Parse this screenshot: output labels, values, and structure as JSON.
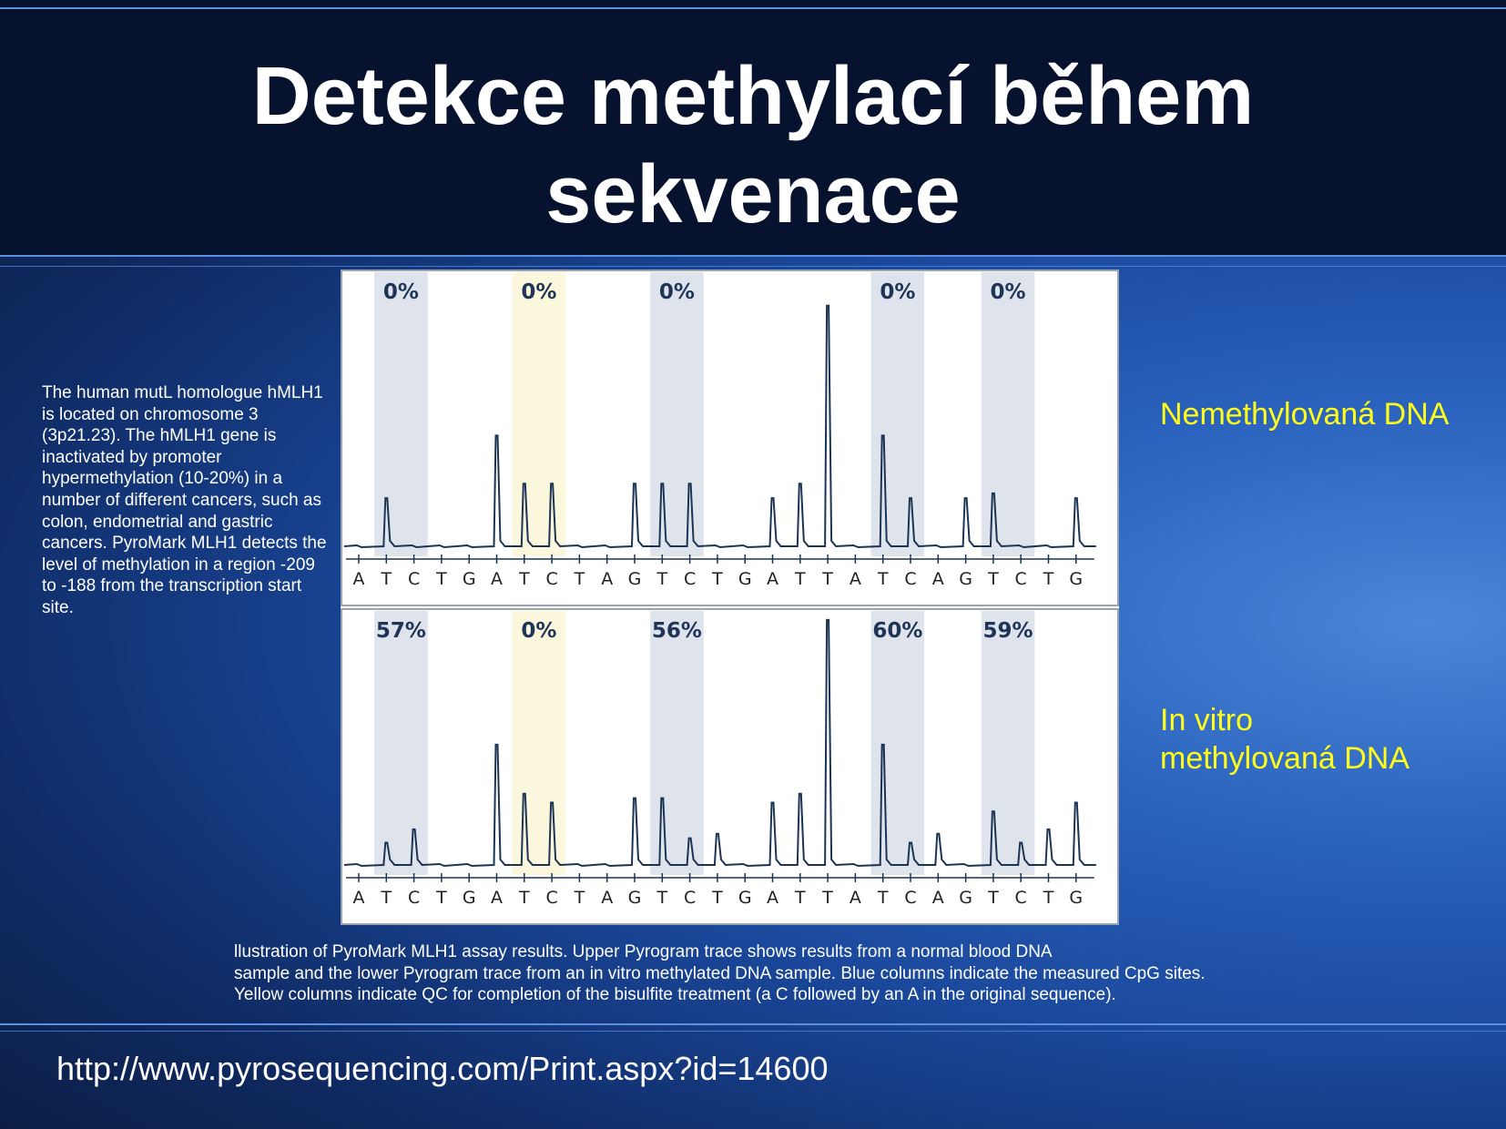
{
  "slide": {
    "title_line1": "Detekce methylací během",
    "title_line2": "sekvenace",
    "description": "The human mutL homologue hMLH1 is located on chromosome 3 (3p21.23). The hMLH1 gene is inactivated by promoter hypermethylation (10-20%) in a number of different cancers, such as colon, endometrial and gastric cancers. PyroMark MLH1 detects the level of methylation in a region -209 to -188 from the transcription start site.",
    "label_unmethylated": "Nemethylovaná DNA",
    "label_methylated_line1": "In vitro",
    "label_methylated_line2": "methylovaná DNA",
    "caption_line1": "llustration of PyroMark MLH1 assay results. Upper Pyrogram trace shows results from a normal blood DNA",
    "caption_line2": "sample and the lower Pyrogram trace from an in vitro methylated DNA sample. Blue columns indicate the measured CpG sites.",
    "caption_line3": "Yellow columns indicate QC for completion of the bisulfite treatment (a C followed by an A in the original sequence).",
    "url": "http://www.pyrosequencing.com/Print.aspx?id=14600"
  },
  "colors": {
    "header_bg": "#07132e",
    "accent_line": "#5b8fe0",
    "label_yellow": "#ffff1a",
    "cpg_column": "#dfe3ec",
    "qc_column": "#fbf7dc",
    "trace": "#1c3454",
    "percent_text": "#1f3557"
  },
  "chart_data": [
    {
      "type": "line",
      "name": "Upper Pyrogram",
      "x": [
        "A",
        "T",
        "C",
        "T",
        "G",
        "A",
        "T",
        "C",
        "T",
        "A",
        "G",
        "T",
        "C",
        "T",
        "G",
        "A",
        "T",
        "T",
        "A",
        "T",
        "C",
        "A",
        "G",
        "T",
        "C",
        "T",
        "G"
      ],
      "values": [
        0,
        1.0,
        0,
        0,
        0,
        2.3,
        1.3,
        1.3,
        0,
        0,
        1.3,
        1.3,
        1.3,
        0,
        0,
        1.0,
        1.3,
        5.0,
        0,
        2.3,
        1.0,
        0,
        1.0,
        1.1,
        0,
        0,
        1.0
      ],
      "highlights": [
        {
          "kind": "cpg",
          "positions": [
            1,
            2
          ],
          "label": "0%"
        },
        {
          "kind": "qc",
          "positions": [
            6,
            7
          ],
          "label": "0%"
        },
        {
          "kind": "cpg",
          "positions": [
            11,
            12
          ],
          "label": "0%"
        },
        {
          "kind": "cpg",
          "positions": [
            19,
            20
          ],
          "label": "0%"
        },
        {
          "kind": "cpg",
          "positions": [
            23,
            24
          ],
          "label": "0%"
        }
      ]
    },
    {
      "type": "line",
      "name": "Lower Pyrogram",
      "x": [
        "A",
        "T",
        "C",
        "T",
        "G",
        "A",
        "T",
        "C",
        "T",
        "A",
        "G",
        "T",
        "C",
        "T",
        "G",
        "A",
        "T",
        "T",
        "A",
        "T",
        "C",
        "A",
        "G",
        "T",
        "C",
        "T",
        "G"
      ],
      "values": [
        0,
        0.5,
        0.8,
        0,
        0,
        2.7,
        1.6,
        1.4,
        0,
        0,
        1.5,
        1.5,
        0.6,
        0.7,
        0,
        1.4,
        1.6,
        5.5,
        0,
        2.7,
        0.5,
        0.7,
        0,
        1.2,
        0.5,
        0.8,
        1.4
      ],
      "highlights": [
        {
          "kind": "cpg",
          "positions": [
            1,
            2
          ],
          "label": "57%"
        },
        {
          "kind": "qc",
          "positions": [
            6,
            7
          ],
          "label": "0%"
        },
        {
          "kind": "cpg",
          "positions": [
            11,
            12
          ],
          "label": "56%"
        },
        {
          "kind": "cpg",
          "positions": [
            19,
            20
          ],
          "label": "60%"
        },
        {
          "kind": "cpg",
          "positions": [
            23,
            24
          ],
          "label": "59%"
        }
      ]
    }
  ]
}
